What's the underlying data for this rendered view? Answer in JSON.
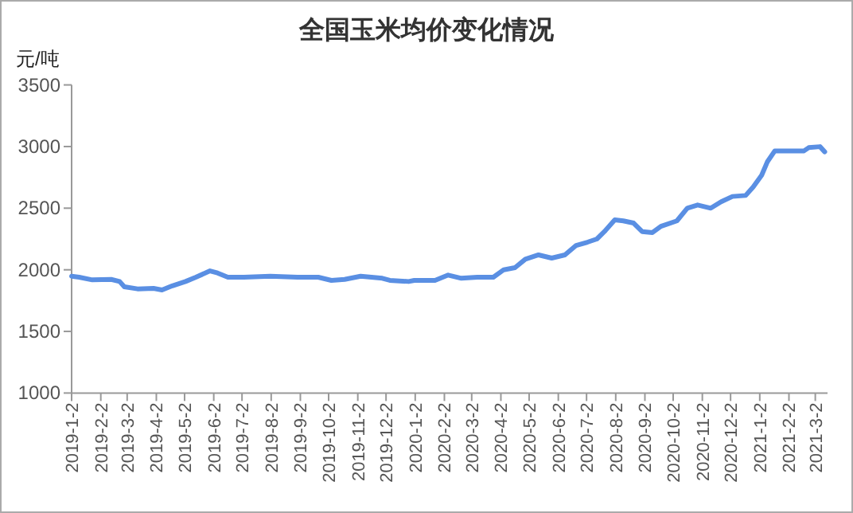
{
  "chart_data": {
    "type": "line",
    "title": "全国玉米均价变化情况",
    "ylabel": "元/吨",
    "color": "#5a8fe3",
    "x": [
      "2019-01-02",
      "2019-01-10",
      "2019-01-24",
      "2019-02-13",
      "2019-02-22",
      "2019-02-27",
      "2019-03-13",
      "2019-03-30",
      "2019-04-08",
      "2019-04-19",
      "2019-05-03",
      "2019-05-14",
      "2019-05-29",
      "2019-06-06",
      "2019-06-17",
      "2019-07-04",
      "2019-08-01",
      "2019-08-30",
      "2019-09-21",
      "2019-10-05",
      "2019-10-19",
      "2019-11-05",
      "2019-11-28",
      "2019-12-06",
      "2019-12-26",
      "2020-01-01",
      "2020-01-23",
      "2020-02-06",
      "2020-02-20",
      "2020-03-08",
      "2020-03-25",
      "2020-04-05",
      "2020-04-17",
      "2020-04-28",
      "2020-05-12",
      "2020-05-26",
      "2020-06-09",
      "2020-06-21",
      "2020-07-03",
      "2020-07-13",
      "2020-07-21",
      "2020-08-01",
      "2020-08-10",
      "2020-08-21",
      "2020-08-30",
      "2020-09-10",
      "2020-09-19",
      "2020-10-06",
      "2020-10-17",
      "2020-10-28",
      "2020-11-11",
      "2020-11-22",
      "2020-12-04",
      "2020-12-18",
      "2020-12-26",
      "2021-01-04",
      "2021-01-10",
      "2021-01-18",
      "2021-01-29",
      "2021-02-18",
      "2021-02-23",
      "2021-03-07",
      "2021-03-12"
    ],
    "values": [
      1948,
      1940,
      1918,
      1922,
      1905,
      1862,
      1845,
      1849,
      1836,
      1870,
      1905,
      1940,
      1991,
      1974,
      1940,
      1940,
      1948,
      1940,
      1940,
      1914,
      1922,
      1948,
      1931,
      1914,
      1905,
      1914,
      1914,
      1957,
      1931,
      1940,
      1940,
      2000,
      2017,
      2086,
      2121,
      2095,
      2121,
      2198,
      2224,
      2250,
      2310,
      2405,
      2397,
      2379,
      2310,
      2302,
      2353,
      2397,
      2500,
      2526,
      2500,
      2552,
      2595,
      2603,
      2672,
      2767,
      2875,
      2965,
      2965,
      2965,
      2991,
      2999,
      2957
    ],
    "xlim": [
      "2019-01-02",
      "2021-03-15"
    ],
    "ylim": [
      1000,
      3500
    ],
    "yticks": [
      1000,
      1500,
      2000,
      2500,
      3000,
      3500
    ],
    "xticks": [
      {
        "value": "2019-01-02",
        "label": "2019-1-2"
      },
      {
        "value": "2019-02-02",
        "label": "2019-2-2"
      },
      {
        "value": "2019-03-02",
        "label": "2019-3-2"
      },
      {
        "value": "2019-04-02",
        "label": "2019-4-2"
      },
      {
        "value": "2019-05-02",
        "label": "2019-5-2"
      },
      {
        "value": "2019-06-02",
        "label": "2019-6-2"
      },
      {
        "value": "2019-07-02",
        "label": "2019-7-2"
      },
      {
        "value": "2019-08-02",
        "label": "2019-8-2"
      },
      {
        "value": "2019-09-02",
        "label": "2019-9-2"
      },
      {
        "value": "2019-10-02",
        "label": "2019-10-2"
      },
      {
        "value": "2019-11-02",
        "label": "2019-11-2"
      },
      {
        "value": "2019-12-02",
        "label": "2019-12-2"
      },
      {
        "value": "2020-01-02",
        "label": "2020-1-2"
      },
      {
        "value": "2020-02-02",
        "label": "2020-2-2"
      },
      {
        "value": "2020-03-02",
        "label": "2020-3-2"
      },
      {
        "value": "2020-04-02",
        "label": "2020-4-2"
      },
      {
        "value": "2020-05-02",
        "label": "2020-5-2"
      },
      {
        "value": "2020-06-02",
        "label": "2020-6-2"
      },
      {
        "value": "2020-07-02",
        "label": "2020-7-2"
      },
      {
        "value": "2020-08-02",
        "label": "2020-8-2"
      },
      {
        "value": "2020-09-02",
        "label": "2020-9-2"
      },
      {
        "value": "2020-10-02",
        "label": "2020-10-2"
      },
      {
        "value": "2020-11-02",
        "label": "2020-11-2"
      },
      {
        "value": "2020-12-02",
        "label": "2020-12-2"
      },
      {
        "value": "2021-01-02",
        "label": "2021-1-2"
      },
      {
        "value": "2021-02-02",
        "label": "2021-2-2"
      },
      {
        "value": "2021-03-02",
        "label": "2021-3-2"
      }
    ]
  }
}
